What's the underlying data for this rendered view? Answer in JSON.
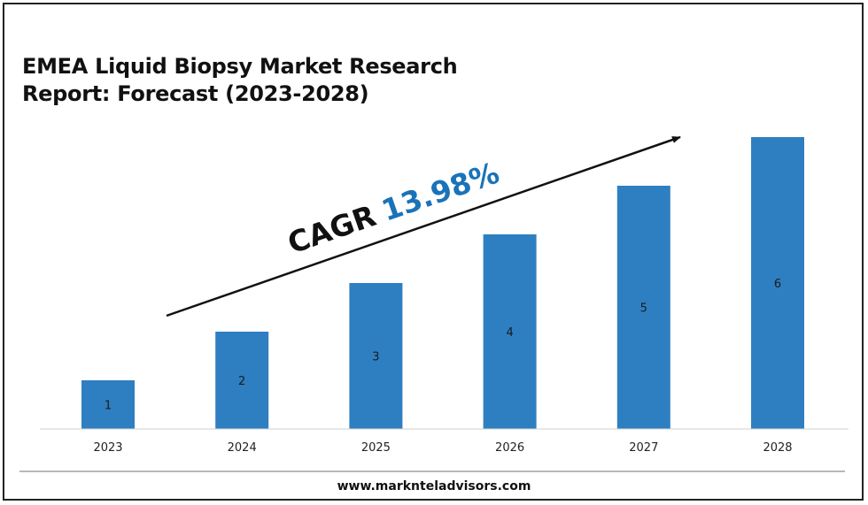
{
  "title_line1": "EMEA Liquid Biopsy Market Research",
  "title_line2": "Report: Forecast (2023-2028)",
  "cagr_label": "CAGR",
  "cagr_value": "13.98%",
  "footer": "www.marknteladvisors.com",
  "colors": {
    "bar": "#2e7fc1",
    "cagr_value": "#1a73b8",
    "text": "#111111"
  },
  "chart_data": {
    "type": "bar",
    "title": "EMEA Liquid Biopsy Market Research Report: Forecast (2023-2028)",
    "categories": [
      "2023",
      "2024",
      "2025",
      "2026",
      "2027",
      "2028"
    ],
    "values": [
      1,
      2,
      3,
      4,
      5,
      6
    ],
    "data_labels": [
      "1",
      "2",
      "3",
      "4",
      "5",
      "6"
    ],
    "xlabel": "",
    "ylabel": "",
    "ylim": [
      0,
      6
    ],
    "grid": false,
    "legend": "none"
  }
}
